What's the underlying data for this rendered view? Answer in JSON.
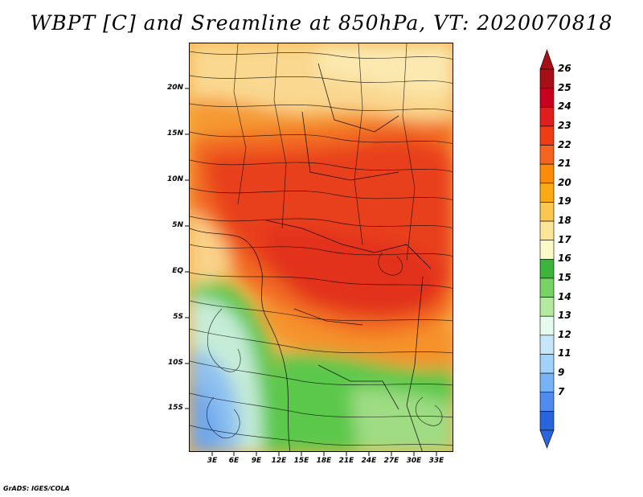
{
  "title": "WBPT [C] and Sreamline at 850hPa, VT: 2020070818",
  "credit": "GrADS: IGES/COLA",
  "map": {
    "lat_labels": [
      "20N",
      "15N",
      "10N",
      "5N",
      "EQ",
      "5S",
      "10S",
      "15S"
    ],
    "lon_labels": [
      "3E",
      "6E",
      "9E",
      "12E",
      "15E",
      "18E",
      "21E",
      "24E",
      "27E",
      "30E",
      "33E"
    ]
  },
  "colorbar": {
    "labels": [
      "26",
      "25",
      "24",
      "23",
      "22",
      "21",
      "20",
      "19",
      "18",
      "17",
      "16",
      "15",
      "14",
      "13",
      "12",
      "11",
      "9",
      "7"
    ],
    "colors": [
      "#a50f15",
      "#c8001e",
      "#e01e1e",
      "#f03c14",
      "#f5641e",
      "#fa8c0a",
      "#faaa14",
      "#fac850",
      "#fae696",
      "#fafac8",
      "#3cb43c",
      "#78d264",
      "#b4eaa0",
      "#e6faf0",
      "#c8e6fa",
      "#a0d2fa",
      "#78b4f5",
      "#508cf0",
      "#2864dc"
    ]
  },
  "colors": {
    "red_core": "#e8361a",
    "orange": "#f47a1e",
    "yellow": "#fad26e",
    "green": "#5cc84c",
    "blue": "#6ea6ec"
  }
}
